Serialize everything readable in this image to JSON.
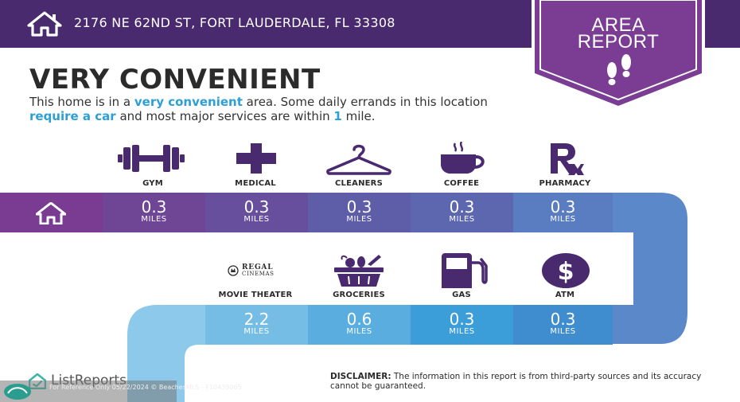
{
  "header": {
    "address": "2176 NE 62ND ST, FORT LAUDERDALE, FL 33308",
    "home_icon": "house-icon"
  },
  "ribbon": {
    "line1": "AREA",
    "line2": "REPORT",
    "icon": "footsteps-icon"
  },
  "headline": "VERY CONVENIENT",
  "description": {
    "p1": "This home is in a ",
    "h1": "very convenient",
    "p2": " area. Some daily errands in this location ",
    "h2": "require a car",
    "p3": " and most major services are within ",
    "h3": "1",
    "p4": " mile."
  },
  "row1": {
    "categories": [
      {
        "label": "GYM",
        "icon": "dumbbell-icon",
        "value": "0.3",
        "unit": "MILES"
      },
      {
        "label": "MEDICAL",
        "icon": "medical-cross-icon",
        "value": "0.3",
        "unit": "MILES"
      },
      {
        "label": "CLEANERS",
        "icon": "hanger-icon",
        "value": "0.3",
        "unit": "MILES"
      },
      {
        "label": "COFFEE",
        "icon": "coffee-cup-icon",
        "value": "0.3",
        "unit": "MILES"
      },
      {
        "label": "PHARMACY",
        "icon": "rx-icon",
        "value": "0.3",
        "unit": "MILES"
      }
    ]
  },
  "row2": {
    "categories": [
      {
        "label": "MOVIE THEATER",
        "icon": "regal-cinemas-logo",
        "logo_line1": "REGAL",
        "logo_line2": "CINEMAS",
        "value": "2.2",
        "unit": "MILES"
      },
      {
        "label": "GROCERIES",
        "icon": "grocery-basket-icon",
        "value": "0.6",
        "unit": "MILES"
      },
      {
        "label": "GAS",
        "icon": "gas-pump-icon",
        "value": "0.3",
        "unit": "MILES"
      },
      {
        "label": "ATM",
        "icon": "dollar-icon",
        "value": "0.3",
        "unit": "MILES"
      }
    ]
  },
  "footer": {
    "brand": "ListReports",
    "disclaimer_label": "DISCLAIMER:",
    "disclaimer_text": " The information in this report is from third-party sources and its accuracy cannot be guaranteed.",
    "watermark": "For Reference Only 05/22/2024 © BeachesMLS - F10439065"
  },
  "colors": {
    "header_bg": "#4a2a6f",
    "ribbon_bg": "#7b3d93",
    "accent_text": "#2d9fd3",
    "row1_cells": [
      "#7a3c92",
      "#6f4596",
      "#684f9e",
      "#5d67b0",
      "#5a7cc0",
      "#5b88c8"
    ],
    "row2_cells": [
      "#75bde5",
      "#5aaedf",
      "#3c9ed8",
      "#3f8dcf"
    ],
    "icon_dark": "#4a2a6f"
  }
}
